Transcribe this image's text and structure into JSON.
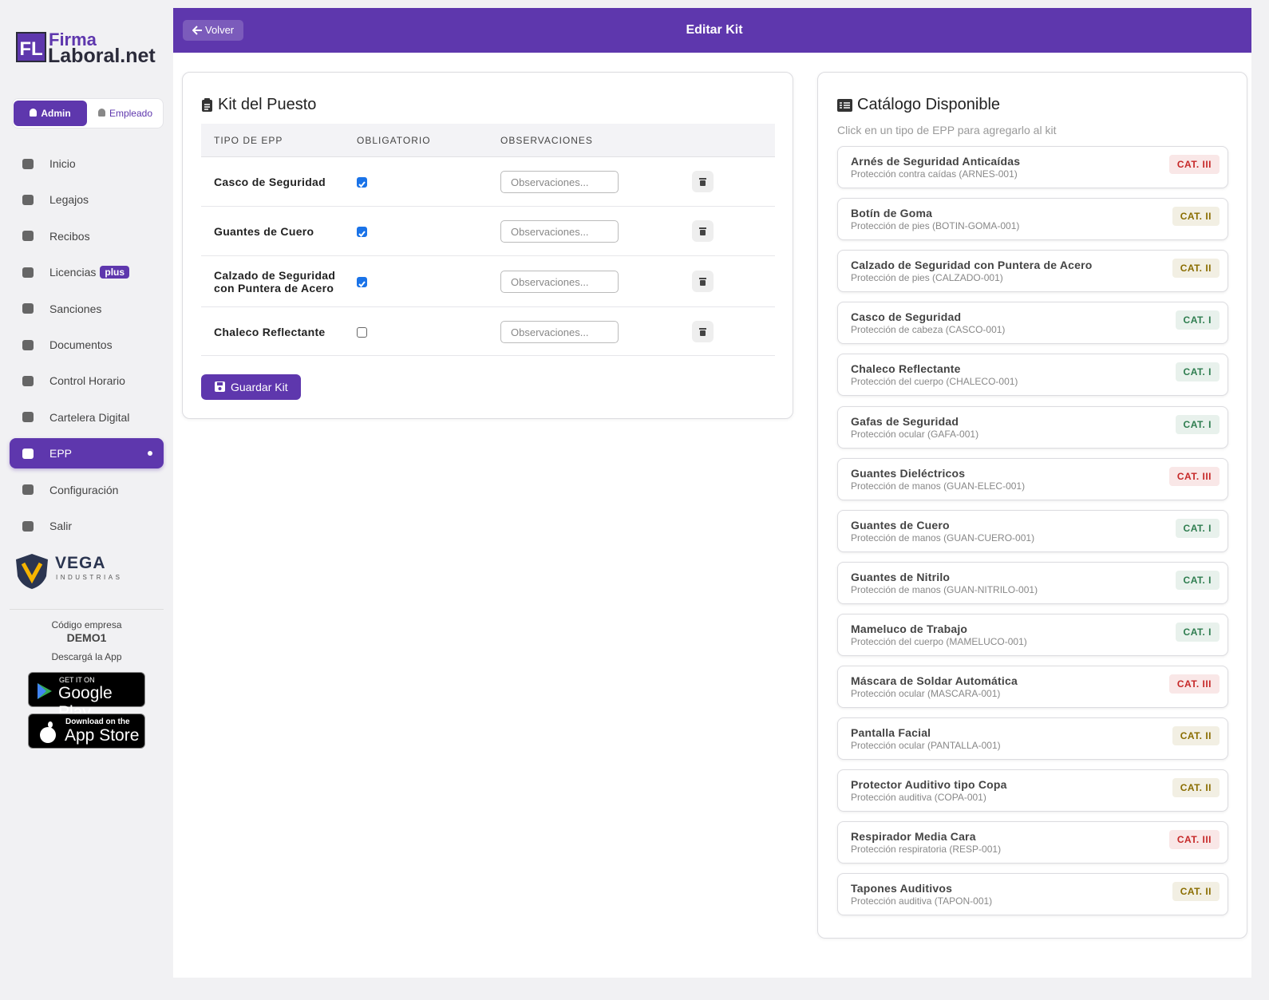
{
  "brand": {
    "mark": "FL",
    "name_top": "Firma",
    "name_bottom": "Laboral.net"
  },
  "roles": [
    {
      "label": "Admin",
      "active": true
    },
    {
      "label": "Empleado",
      "active": false
    }
  ],
  "nav": [
    {
      "label": "Inicio"
    },
    {
      "label": "Legajos"
    },
    {
      "label": "Recibos"
    },
    {
      "label": "Licencias",
      "badge": "plus"
    },
    {
      "label": "Sanciones"
    },
    {
      "label": "Documentos"
    },
    {
      "label": "Control Horario"
    },
    {
      "label": "Cartelera Digital"
    },
    {
      "label": "EPP",
      "active": true
    },
    {
      "label": "Configuración"
    },
    {
      "label": "Salir"
    }
  ],
  "company": {
    "name": "VEGA",
    "subtitle": "INDUSTRIAS"
  },
  "footer": {
    "code_label": "Código empresa",
    "code": "DEMO1",
    "download": "Descargá la App",
    "google": {
      "small": "GET IT ON",
      "big": "Google Play"
    },
    "apple": {
      "small": "Download on the",
      "big": "App Store"
    }
  },
  "header": {
    "back": "Volver",
    "title": "Editar Kit"
  },
  "kit": {
    "title": "Kit del Puesto",
    "columns": [
      "TIPO DE EPP",
      "OBLIGATORIO",
      "OBSERVACIONES"
    ],
    "rows": [
      {
        "name": "Casco de Seguridad",
        "required": true,
        "placeholder": "Observaciones..."
      },
      {
        "name": "Guantes de Cuero",
        "required": true,
        "placeholder": "Observaciones..."
      },
      {
        "name": "Calzado de Seguridad con Puntera de Acero",
        "required": true,
        "placeholder": "Observaciones..."
      },
      {
        "name": "Chaleco Reflectante",
        "required": false,
        "placeholder": "Observaciones..."
      }
    ],
    "save": "Guardar Kit"
  },
  "catalog": {
    "title": "Catálogo Disponible",
    "hint": "Click en un tipo de EPP para agregarlo al kit",
    "items": [
      {
        "name": "Arnés de Seguridad Anticaídas",
        "desc": "Protección contra caídas (ARNES-001)",
        "category": "CAT. III",
        "color": "#c62828"
      },
      {
        "name": "Botín de Goma",
        "desc": "Protección de pies (BOTIN-GOMA-001)",
        "category": "CAT. II",
        "color": "#8a6d00"
      },
      {
        "name": "Calzado de Seguridad con Puntera de Acero",
        "desc": "Protección de pies (CALZADO-001)",
        "category": "CAT. II",
        "color": "#8a6d00"
      },
      {
        "name": "Casco de Seguridad",
        "desc": "Protección de cabeza (CASCO-001)",
        "category": "CAT. I",
        "color": "#2e7d4f"
      },
      {
        "name": "Chaleco Reflectante",
        "desc": "Protección del cuerpo (CHALECO-001)",
        "category": "CAT. I",
        "color": "#2e7d4f"
      },
      {
        "name": "Gafas de Seguridad",
        "desc": "Protección ocular (GAFA-001)",
        "category": "CAT. I",
        "color": "#2e7d4f"
      },
      {
        "name": "Guantes Dieléctricos",
        "desc": "Protección de manos (GUAN-ELEC-001)",
        "category": "CAT. III",
        "color": "#c62828"
      },
      {
        "name": "Guantes de Cuero",
        "desc": "Protección de manos (GUAN-CUERO-001)",
        "category": "CAT. I",
        "color": "#2e7d4f"
      },
      {
        "name": "Guantes de Nitrilo",
        "desc": "Protección de manos (GUAN-NITRILO-001)",
        "category": "CAT. I",
        "color": "#2e7d4f"
      },
      {
        "name": "Mameluco de Trabajo",
        "desc": "Protección del cuerpo (MAMELUCO-001)",
        "category": "CAT. I",
        "color": "#2e7d4f"
      },
      {
        "name": "Máscara de Soldar Automática",
        "desc": "Protección ocular (MASCARA-001)",
        "category": "CAT. III",
        "color": "#c62828"
      },
      {
        "name": "Pantalla Facial",
        "desc": "Protección ocular (PANTALLA-001)",
        "category": "CAT. II",
        "color": "#8a6d00"
      },
      {
        "name": "Protector Auditivo tipo Copa",
        "desc": "Protección auditiva (COPA-001)",
        "category": "CAT. II",
        "color": "#8a6d00"
      },
      {
        "name": "Respirador Media Cara",
        "desc": "Protección respiratoria (RESP-001)",
        "category": "CAT. III",
        "color": "#c62828"
      },
      {
        "name": "Tapones Auditivos",
        "desc": "Protección auditiva (TAPON-001)",
        "category": "CAT. II",
        "color": "#8a6d00"
      }
    ]
  }
}
